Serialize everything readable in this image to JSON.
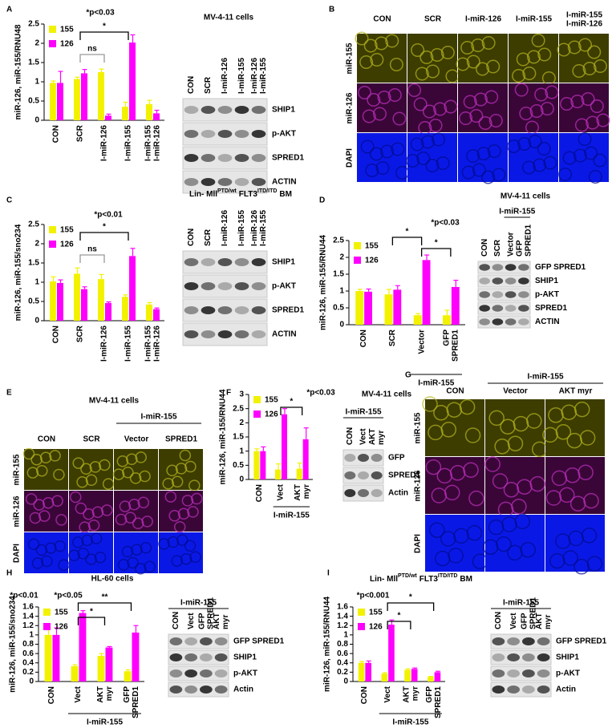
{
  "panels": [
    "A",
    "B",
    "C",
    "D",
    "E",
    "F",
    "G",
    "H",
    "I"
  ],
  "chart_data": [
    {
      "type": "bar",
      "ylabel": "miR-126, miR-155/RNU48",
      "categories": [
        "CON",
        "SCR",
        "I-miR-126",
        "I-miR-155",
        [
          "I-miR-155",
          "I-miR-126"
        ]
      ],
      "series": [
        {
          "name": "155",
          "color": "#f2f200",
          "values": [
            0.97,
            1.07,
            1.25,
            0.35,
            0.42
          ],
          "errors": [
            0.05,
            0.05,
            0.08,
            0.12,
            0.1
          ]
        },
        {
          "name": "126",
          "color": "#ff00ff",
          "values": [
            0.97,
            1.22,
            0.12,
            2.02,
            0.18
          ],
          "errors": [
            0.3,
            0.1,
            0.04,
            0.2,
            0.08
          ]
        }
      ],
      "ylim": [
        0,
        2.5
      ],
      "yticks": [
        0,
        0.5,
        1,
        1.5,
        2,
        2.5
      ],
      "annotations": [
        "*p<0.03",
        "*",
        "ns"
      ]
    },
    {
      "type": "bar",
      "ylabel": "miR-126, miR-155/sno234",
      "categories": [
        "CON",
        "SCR",
        "I-miR-126",
        "I-miR-155",
        [
          "I-miR-155",
          "I-miR-126"
        ]
      ],
      "series": [
        {
          "name": "155",
          "color": "#f2f200",
          "values": [
            1.02,
            1.22,
            1.08,
            0.62,
            0.42
          ],
          "errors": [
            0.12,
            0.15,
            0.12,
            0.05,
            0.05
          ]
        },
        {
          "name": "126",
          "color": "#ff00ff",
          "values": [
            0.98,
            0.82,
            0.46,
            1.68,
            0.3
          ],
          "errors": [
            0.08,
            0.06,
            0.03,
            0.2,
            0.03
          ]
        }
      ],
      "ylim": [
        0,
        2.5
      ],
      "yticks": [
        0,
        0.5,
        1,
        1.5,
        2,
        2.5
      ],
      "annotations": [
        "*p<0.01",
        "*",
        "ns"
      ]
    },
    {
      "type": "bar",
      "ylabel": "miR-126, miR-155/RNU44",
      "categories": [
        "CON",
        "SCR",
        "Vector",
        [
          "GFP",
          "SPRED1"
        ]
      ],
      "group_label": "I-miR-155",
      "series": [
        {
          "name": "155",
          "color": "#f2f200",
          "values": [
            1,
            0.9,
            0.28,
            0.28
          ],
          "errors": [
            0.05,
            0.15,
            0.05,
            0.15
          ]
        },
        {
          "name": "126",
          "color": "#ff00ff",
          "values": [
            0.98,
            1.04,
            1.92,
            1.12
          ],
          "errors": [
            0.08,
            0.12,
            0.15,
            0.2
          ]
        }
      ],
      "ylim": [
        0,
        2.5
      ],
      "yticks": [
        0,
        0.5,
        1,
        1.5,
        2,
        2.5
      ],
      "annotations": [
        "*p<0.03",
        "*",
        "*"
      ]
    },
    {
      "type": "bar",
      "ylabel": "miR-126, miR-155/RNU44",
      "categories": [
        "CON",
        "Vect",
        [
          "AKT",
          "myr"
        ]
      ],
      "group_label": "I-miR-155",
      "series": [
        {
          "name": "155",
          "color": "#f2f200",
          "values": [
            1.0,
            0.35,
            0.38
          ],
          "errors": [
            0.08,
            0.2,
            0.2
          ]
        },
        {
          "name": "126",
          "color": "#ff00ff",
          "values": [
            1.0,
            2.3,
            1.42
          ],
          "errors": [
            0.15,
            0.2,
            0.4
          ]
        }
      ],
      "ylim": [
        0,
        3
      ],
      "yticks": [
        0,
        0.5,
        1,
        1.5,
        2,
        2.5,
        3
      ],
      "annotations": [
        "*p<0.03",
        "*"
      ]
    },
    {
      "type": "bar",
      "ylabel": "miR-126, miR-155/sno234",
      "categories": [
        "CON",
        "Vect",
        [
          "AKT",
          "myr"
        ],
        [
          "GFP",
          "SPRED1"
        ]
      ],
      "group_label": "I-miR-155",
      "series": [
        {
          "name": "155",
          "color": "#f2f200",
          "values": [
            1.0,
            0.33,
            0.55,
            0.22
          ],
          "errors": [
            0.15,
            0.03,
            0.05,
            0.03
          ]
        },
        {
          "name": "126",
          "color": "#ff00ff",
          "values": [
            1.0,
            1.47,
            0.73,
            1.05
          ],
          "errors": [
            0.15,
            0.05,
            0.02,
            0.15
          ]
        }
      ],
      "ylim": [
        0,
        1.6
      ],
      "yticks": [
        0,
        0.2,
        0.4,
        0.6,
        0.8,
        1,
        1.2,
        1.4,
        1.6
      ],
      "annotations": [
        "*p<0.01",
        "*p<0.05",
        "*",
        "**"
      ]
    },
    {
      "type": "bar",
      "ylabel": "miR-126, miR-155/RNU44",
      "categories": [
        "CON",
        "Vect",
        [
          "AKT",
          "myr"
        ],
        [
          "GFP",
          "SPRED1"
        ]
      ],
      "group_label": "I-miR-155",
      "series": [
        {
          "name": "155",
          "color": "#f2f200",
          "values": [
            0.4,
            0.17,
            0.25,
            0.1
          ],
          "errors": [
            0.03,
            0.02,
            0.02,
            0.01
          ]
        },
        {
          "name": "126",
          "color": "#ff00ff",
          "values": [
            0.4,
            1.22,
            0.27,
            0.2
          ],
          "errors": [
            0.04,
            0.1,
            0.02,
            0.02
          ]
        }
      ],
      "ylim": [
        0,
        1.6
      ],
      "yticks": [
        0,
        0.2,
        0.4,
        0.6,
        0.8,
        1,
        1.2,
        1.4,
        1.6
      ],
      "annotations": [
        "*p<0.001",
        "*",
        "*"
      ]
    }
  ],
  "blots": {
    "A": {
      "title": "MV-4-11 cells",
      "lanes": [
        "CON",
        "SCR",
        "I-miR-126",
        "I-miR-155",
        [
          "I-miR-126",
          "I-miR-155"
        ]
      ],
      "rows": [
        "SHIP1",
        "p-AKT",
        "SPRED1",
        "ACTIN"
      ]
    },
    "C": {
      "title_parts": [
        "Lin- Mll",
        "PTD/wt",
        "FLT3",
        "ITD/ITD",
        "BM"
      ],
      "lanes": [
        "CON",
        "SCR",
        "I-miR-126",
        "I-miR-155",
        [
          "I-miR-126",
          "I-miR-155"
        ]
      ],
      "rows": [
        "SHIP1",
        "p-AKT",
        "SPRED1",
        "ACTIN"
      ]
    },
    "D": {
      "title": "MV-4-11 cells",
      "group": "I-miR-155",
      "lanes": [
        "CON",
        "SCR",
        "Vector",
        [
          "GFP",
          "SPRED1"
        ]
      ],
      "rows": [
        "GFP SPRED1",
        "SHIP1",
        "p-AKT",
        "SPRED1",
        "ACTIN"
      ]
    },
    "F": {
      "title": "MV-4-11 cells",
      "group": "I-miR-155",
      "lanes": [
        "CON",
        "Vect",
        [
          "AKT",
          "myr"
        ]
      ],
      "rows": [
        "GFP",
        "SPRED1",
        "Actin"
      ]
    },
    "H": {
      "title": "HL-60 cells",
      "group": "I-miR-155",
      "lanes": [
        "CON",
        "Vect",
        [
          "GFP",
          "SPRED1"
        ],
        [
          "AKT",
          "myr"
        ]
      ],
      "rows": [
        "GFP SPRED1",
        "SHIP1",
        "p-AKT",
        "Actin"
      ]
    },
    "I": {
      "title_parts": [
        "Lin- Mll",
        "PTD/wt",
        "FLT3",
        "ITD/ITD",
        "BM"
      ],
      "group": "I-miR-155",
      "lanes": [
        "CON",
        "Vect",
        [
          "GFP",
          "SPRED1"
        ],
        [
          "AKT",
          "myr"
        ]
      ],
      "rows": [
        "GFP SPRED1",
        "SHIP1",
        "p-AKT",
        "Actin"
      ]
    }
  },
  "images": {
    "B": {
      "columns": [
        "CON",
        "SCR",
        "I-miR-126",
        "I-miR-155",
        [
          "I-miR-155",
          "I-miR-126"
        ]
      ],
      "rows": [
        "miR-155",
        "miR-126",
        "DAPI"
      ]
    },
    "E": {
      "title": "MV-4-11 cells",
      "group": "I-miR-155",
      "columns": [
        "CON",
        "SCR",
        "Vector",
        "SPRED1"
      ],
      "rows": [
        "miR-155",
        "miR-126",
        "DAPI"
      ]
    },
    "G": {
      "group": "I-miR-155",
      "columns": [
        "CON",
        "Vector",
        "AKT myr"
      ],
      "rows": [
        "miR-155",
        "miR-126",
        "DAPI"
      ]
    }
  }
}
